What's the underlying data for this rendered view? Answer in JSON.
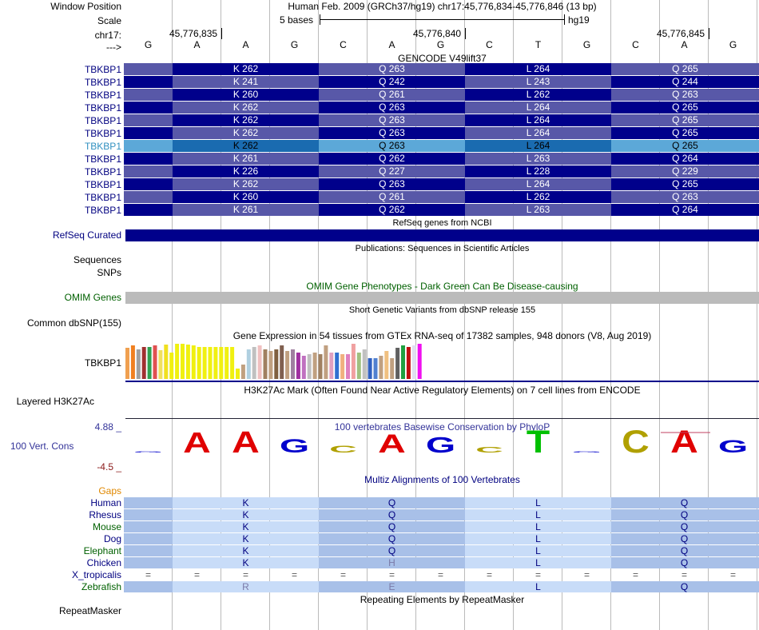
{
  "header": {
    "window_position_label": "Window Position",
    "scale_label": "Scale",
    "chrom_label": "chr17:",
    "arrow_label": "--->",
    "assembly_text": "Human Feb. 2009 (GRCh37/hg19)   chr17:45,776,834-45,776,846 (13 bp)",
    "scale_text": "5 bases",
    "db_text": "hg19",
    "coord_1": "45,776,835",
    "coord_2": "45,776,840",
    "coord_3": "45,776,845",
    "bases": [
      "G",
      "A",
      "A",
      "G",
      "C",
      "A",
      "G",
      "C",
      "T",
      "G",
      "C",
      "A",
      "G"
    ]
  },
  "gencode": {
    "title": "GENCODE V49lift37",
    "rows": [
      {
        "gene": "TBKBP1",
        "codons": [
          "K 262",
          "Q 263",
          "L 264",
          "Q 265"
        ]
      },
      {
        "gene": "TBKBP1",
        "codons": [
          "K 241",
          "Q 242",
          "L 243",
          "Q 244"
        ]
      },
      {
        "gene": "TBKBP1",
        "codons": [
          "K 260",
          "Q 261",
          "L 262",
          "Q 263"
        ]
      },
      {
        "gene": "TBKBP1",
        "codons": [
          "K 262",
          "Q 263",
          "L 264",
          "Q 265"
        ]
      },
      {
        "gene": "TBKBP1",
        "codons": [
          "K 262",
          "Q 263",
          "L 264",
          "Q 265"
        ]
      },
      {
        "gene": "TBKBP1",
        "codons": [
          "K 262",
          "Q 263",
          "L 264",
          "Q 265"
        ]
      },
      {
        "gene": "TBKBP1",
        "codons": [
          "K 262",
          "Q 263",
          "L 264",
          "Q 265"
        ]
      },
      {
        "gene": "TBKBP1",
        "codons": [
          "K 261",
          "Q 262",
          "L 263",
          "Q 264"
        ]
      },
      {
        "gene": "TBKBP1",
        "codons": [
          "K 226",
          "Q 227",
          "L 228",
          "Q 229"
        ]
      },
      {
        "gene": "TBKBP1",
        "codons": [
          "K 262",
          "Q 263",
          "L 264",
          "Q 265"
        ]
      },
      {
        "gene": "TBKBP1",
        "codons": [
          "K 260",
          "Q 261",
          "L 262",
          "Q 263"
        ]
      },
      {
        "gene": "TBKBP1",
        "codons": [
          "K 261",
          "Q 262",
          "L 263",
          "Q 264"
        ]
      }
    ]
  },
  "refseq": {
    "title": "RefSeq genes from NCBI",
    "label": "RefSeq Curated"
  },
  "pubs": {
    "title": "Publications: Sequences in Scientific Articles",
    "label1": "Sequences",
    "label2": "SNPs"
  },
  "omim": {
    "title": "OMIM Gene Phenotypes - Dark Green Can Be Disease-causing",
    "label": "OMIM Genes"
  },
  "dbsnp": {
    "title": "Short Genetic Variants from dbSNP release 155",
    "label": "Common dbSNP(155)"
  },
  "gtex": {
    "title": "Gene Expression in 54 tissues from GTEx RNA-seq of 17382 samples, 948 donors (V8, Aug 2019)",
    "label": "TBKBP1",
    "bars": [
      {
        "v": 0.88,
        "c": "#f0a050"
      },
      {
        "v": 0.95,
        "c": "#f08020"
      },
      {
        "v": 0.85,
        "c": "#a0a0a0"
      },
      {
        "v": 0.9,
        "c": "#a03030"
      },
      {
        "v": 0.92,
        "c": "#30a050"
      },
      {
        "v": 0.95,
        "c": "#e05050"
      },
      {
        "v": 0.82,
        "c": "#f0e060"
      },
      {
        "v": 0.98,
        "c": "#f0e020"
      },
      {
        "v": 0.75,
        "c": "#f0f010"
      },
      {
        "v": 1.0,
        "c": "#f0f010"
      },
      {
        "v": 1.0,
        "c": "#f0f010"
      },
      {
        "v": 0.98,
        "c": "#f0f010"
      },
      {
        "v": 0.95,
        "c": "#f0f010"
      },
      {
        "v": 0.92,
        "c": "#f0f010"
      },
      {
        "v": 0.92,
        "c": "#f0f010"
      },
      {
        "v": 0.9,
        "c": "#f0f010"
      },
      {
        "v": 0.9,
        "c": "#f0f010"
      },
      {
        "v": 0.92,
        "c": "#f0f010"
      },
      {
        "v": 0.92,
        "c": "#f0f010"
      },
      {
        "v": 0.92,
        "c": "#f0f010"
      },
      {
        "v": 0.3,
        "c": "#f0f010"
      },
      {
        "v": 0.4,
        "c": "#c0a080"
      },
      {
        "v": 0.85,
        "c": "#b0d0e0"
      },
      {
        "v": 0.9,
        "c": "#c0c0c0"
      },
      {
        "v": 0.95,
        "c": "#f0c0c0"
      },
      {
        "v": 0.85,
        "c": "#a08060"
      },
      {
        "v": 0.8,
        "c": "#c0a080"
      },
      {
        "v": 0.85,
        "c": "#806040"
      },
      {
        "v": 0.95,
        "c": "#806050"
      },
      {
        "v": 0.8,
        "c": "#c0a080"
      },
      {
        "v": 0.85,
        "c": "#a080a0"
      },
      {
        "v": 0.75,
        "c": "#a030a0"
      },
      {
        "v": 0.65,
        "c": "#c070c0"
      },
      {
        "v": 0.7,
        "c": "#c0c0c0"
      },
      {
        "v": 0.75,
        "c": "#c0a080"
      },
      {
        "v": 0.7,
        "c": "#a08060"
      },
      {
        "v": 0.95,
        "c": "#c0a080"
      },
      {
        "v": 0.75,
        "c": "#e0a0c0"
      },
      {
        "v": 0.75,
        "c": "#3070d0"
      },
      {
        "v": 0.7,
        "c": "#f0b080"
      },
      {
        "v": 0.7,
        "c": "#e080c0"
      },
      {
        "v": 1.0,
        "c": "#f0a0a0"
      },
      {
        "v": 0.75,
        "c": "#a0c080"
      },
      {
        "v": 0.85,
        "c": "#c0c0c0"
      },
      {
        "v": 0.6,
        "c": "#3060c0"
      },
      {
        "v": 0.6,
        "c": "#5080d0"
      },
      {
        "v": 0.65,
        "c": "#c0a080"
      },
      {
        "v": 0.8,
        "c": "#f0c080"
      },
      {
        "v": 0.6,
        "c": "#c0a080"
      },
      {
        "v": 0.88,
        "c": "#606060"
      },
      {
        "v": 0.95,
        "c": "#20a040"
      },
      {
        "v": 0.9,
        "c": "#c01010"
      },
      {
        "v": 0.95,
        "c": "#e0e0f0"
      },
      {
        "v": 1.0,
        "c": "#f010f0"
      }
    ]
  },
  "h3k27ac": {
    "title": "H3K27Ac Mark (Often Found Near Active Regulatory Elements) on 7 cell lines from ENCODE",
    "label": "Layered H3K27Ac"
  },
  "phylop": {
    "title": "100 vertebrates Basewise Conservation by PhyloP",
    "label": "100 Vert. Cons",
    "max_label": "4.88 _",
    "min_label": "-4.5 _",
    "letters": [
      {
        "b": "G",
        "s": 0.05,
        "c": "#0000cc"
      },
      {
        "b": "A",
        "s": 0.9,
        "c": "#e00000"
      },
      {
        "b": "A",
        "s": 0.95,
        "c": "#e00000"
      },
      {
        "b": "G",
        "s": 0.6,
        "c": "#0000cc"
      },
      {
        "b": "C",
        "s": 0.3,
        "c": "#b0a000"
      },
      {
        "b": "A",
        "s": 0.8,
        "c": "#e00000"
      },
      {
        "b": "G",
        "s": 0.7,
        "c": "#0000cc"
      },
      {
        "b": "C",
        "s": 0.25,
        "c": "#b0a000"
      },
      {
        "b": "T",
        "s": 1.0,
        "c": "#00c000"
      },
      {
        "b": "G",
        "s": 0.0,
        "c": "#0000cc"
      },
      {
        "b": "C",
        "s": 1.0,
        "c": "#b0a000"
      },
      {
        "b": "A",
        "s": 1.0,
        "c": "#e00000"
      },
      {
        "b": "G",
        "s": 0.55,
        "c": "#0000cc"
      }
    ]
  },
  "multiz": {
    "title": "Multiz Alignments of 100 Vertebrates",
    "gaps_label": "Gaps",
    "species": [
      {
        "name": "Human",
        "color": "#000080",
        "aa": [
          "K",
          "Q",
          "L",
          "Q"
        ],
        "shade": "#a8c0e8"
      },
      {
        "name": "Rhesus",
        "color": "#000080",
        "aa": [
          "K",
          "Q",
          "L",
          "Q"
        ],
        "shade": "#a8c0e8"
      },
      {
        "name": "Mouse",
        "color": "#006000",
        "aa": [
          "K",
          "Q",
          "L",
          "Q"
        ],
        "shade": "#a8c0e8"
      },
      {
        "name": "Dog",
        "color": "#000080",
        "aa": [
          "K",
          "Q",
          "L",
          "Q"
        ],
        "shade": "#a8c0e8"
      },
      {
        "name": "Elephant",
        "color": "#006000",
        "aa": [
          "K",
          "Q",
          "L",
          "Q"
        ],
        "shade": "#a8c0e8"
      },
      {
        "name": "Chicken",
        "color": "#000080",
        "aa": [
          "K",
          "H",
          "L",
          "Q"
        ],
        "shade": "#a8c0e8"
      },
      {
        "name": "X_tropicalis",
        "color": "#000080",
        "aa": [
          "=",
          "=",
          "=",
          "="
        ],
        "shade": "none"
      },
      {
        "name": "Zebrafish",
        "color": "#006000",
        "aa": [
          "R",
          "E",
          "L",
          "Q"
        ],
        "shade": "#a8c0e8"
      }
    ]
  },
  "repeatmasker": {
    "title": "Repeating Elements by RepeatMasker",
    "label": "RepeatMasker"
  },
  "colors": {
    "dark_navy": "#00008b",
    "mid_blue": "#5858a8",
    "highlight_dark": "#1a6bb0",
    "highlight_light": "#5ca8d8",
    "omim_gray": "#bbbbbb"
  }
}
